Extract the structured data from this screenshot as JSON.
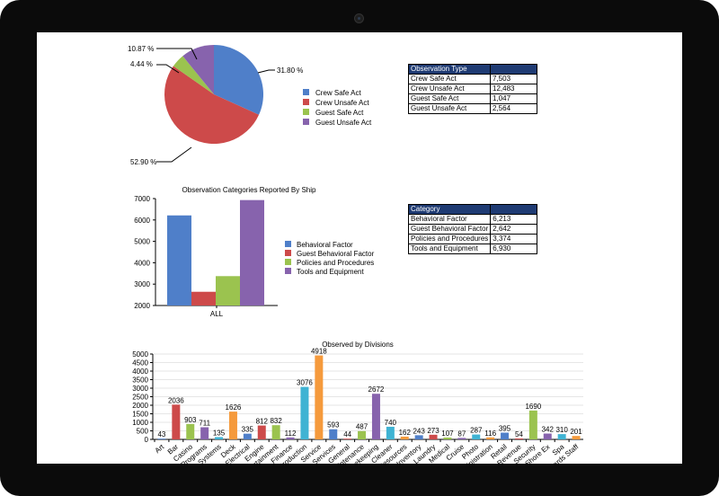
{
  "pie": {
    "labels": [
      "10.87 %",
      "4.44 %",
      "31.80 %",
      "52.90 %"
    ],
    "legend": [
      "Crew Safe Act",
      "Crew Unsafe Act",
      "Guest Safe Act",
      "Guest Unsafe Act"
    ]
  },
  "table1": {
    "header": "Observation Type",
    "rows": [
      {
        "label": "Crew Safe Act",
        "value": "7,503"
      },
      {
        "label": "Crew Unsafe Act",
        "value": "12,483"
      },
      {
        "label": "Guest Safe Act",
        "value": "1,047"
      },
      {
        "label": "Guest Unsafe Act",
        "value": "2,564"
      }
    ]
  },
  "table2": {
    "header": "Category",
    "rows": [
      {
        "label": "Behavioral Factor",
        "value": "6,213"
      },
      {
        "label": "Guest Behavioral Factor",
        "value": "2,642"
      },
      {
        "label": "Policies and Procedures",
        "value": "3,374"
      },
      {
        "label": "Tools and Equipment",
        "value": "6,930"
      }
    ]
  },
  "bar_chart": {
    "title": "Observation Categories Reported By Ship",
    "xlabel": "ALL",
    "yticks": [
      "2000",
      "3000",
      "4000",
      "5000",
      "6000",
      "7000"
    ],
    "legend": [
      "Behavioral Factor",
      "Guest Behavioral Factor",
      "Policies and Procedures",
      "Tools and Equipment"
    ]
  },
  "div_chart": {
    "title": "Observed by Divisions",
    "yticks": [
      "0",
      "500",
      "1000",
      "1500",
      "2000",
      "2500",
      "3000",
      "3500",
      "4000",
      "4500",
      "5000"
    ]
  },
  "chart_data": [
    {
      "type": "pie",
      "categories": [
        "Crew Safe Act",
        "Crew Unsafe Act",
        "Guest Safe Act",
        "Guest Unsafe Act"
      ],
      "values": [
        31.8,
        52.9,
        4.44,
        10.87
      ],
      "colors": [
        "#4f7fc9",
        "#cd4a4a",
        "#9bc34f",
        "#8763ad"
      ],
      "legend_position": "right"
    },
    {
      "type": "bar",
      "title": "Observation Categories Reported By Ship",
      "categories": [
        "ALL"
      ],
      "series": [
        {
          "name": "Behavioral Factor",
          "values": [
            6213
          ],
          "color": "#4f7fc9"
        },
        {
          "name": "Guest Behavioral Factor",
          "values": [
            2642
          ],
          "color": "#cd4a4a"
        },
        {
          "name": "Policies and Procedures",
          "values": [
            3374
          ],
          "color": "#9bc34f"
        },
        {
          "name": "Tools and Equipment",
          "values": [
            6930
          ],
          "color": "#8763ad"
        }
      ],
      "ylim": [
        2000,
        7000
      ],
      "legend_position": "right"
    },
    {
      "type": "bar",
      "title": "Observed by Divisions",
      "categories": [
        "Art",
        "Bar",
        "Casino",
        "Programs",
        "Systems",
        "Deck",
        "Electrical",
        "Engine",
        "Entertainment",
        "Finance",
        "Production",
        "Service",
        "Services",
        "General",
        "Maintenance",
        "Housekeeping",
        "Cleaner",
        "Resources",
        "Inventory",
        "Laundry",
        "Medical",
        "Cruise",
        "Photo",
        "Administration",
        "Retail",
        "Revenue",
        "Security",
        "Shore Ex",
        "Spa",
        "Guards Staff"
      ],
      "values": [
        43,
        2036,
        903,
        711,
        135,
        1626,
        335,
        812,
        832,
        112,
        3076,
        4918,
        593,
        44,
        487,
        2672,
        740,
        162,
        243,
        273,
        107,
        87,
        287,
        116,
        395,
        54,
        1690,
        342,
        310,
        201
      ],
      "colors": [
        "#4f7fc9",
        "#cd4a4a",
        "#9bc34f",
        "#8763ad",
        "#3fb3d3",
        "#f59a3c"
      ],
      "ylim": [
        0,
        5000
      ]
    }
  ]
}
